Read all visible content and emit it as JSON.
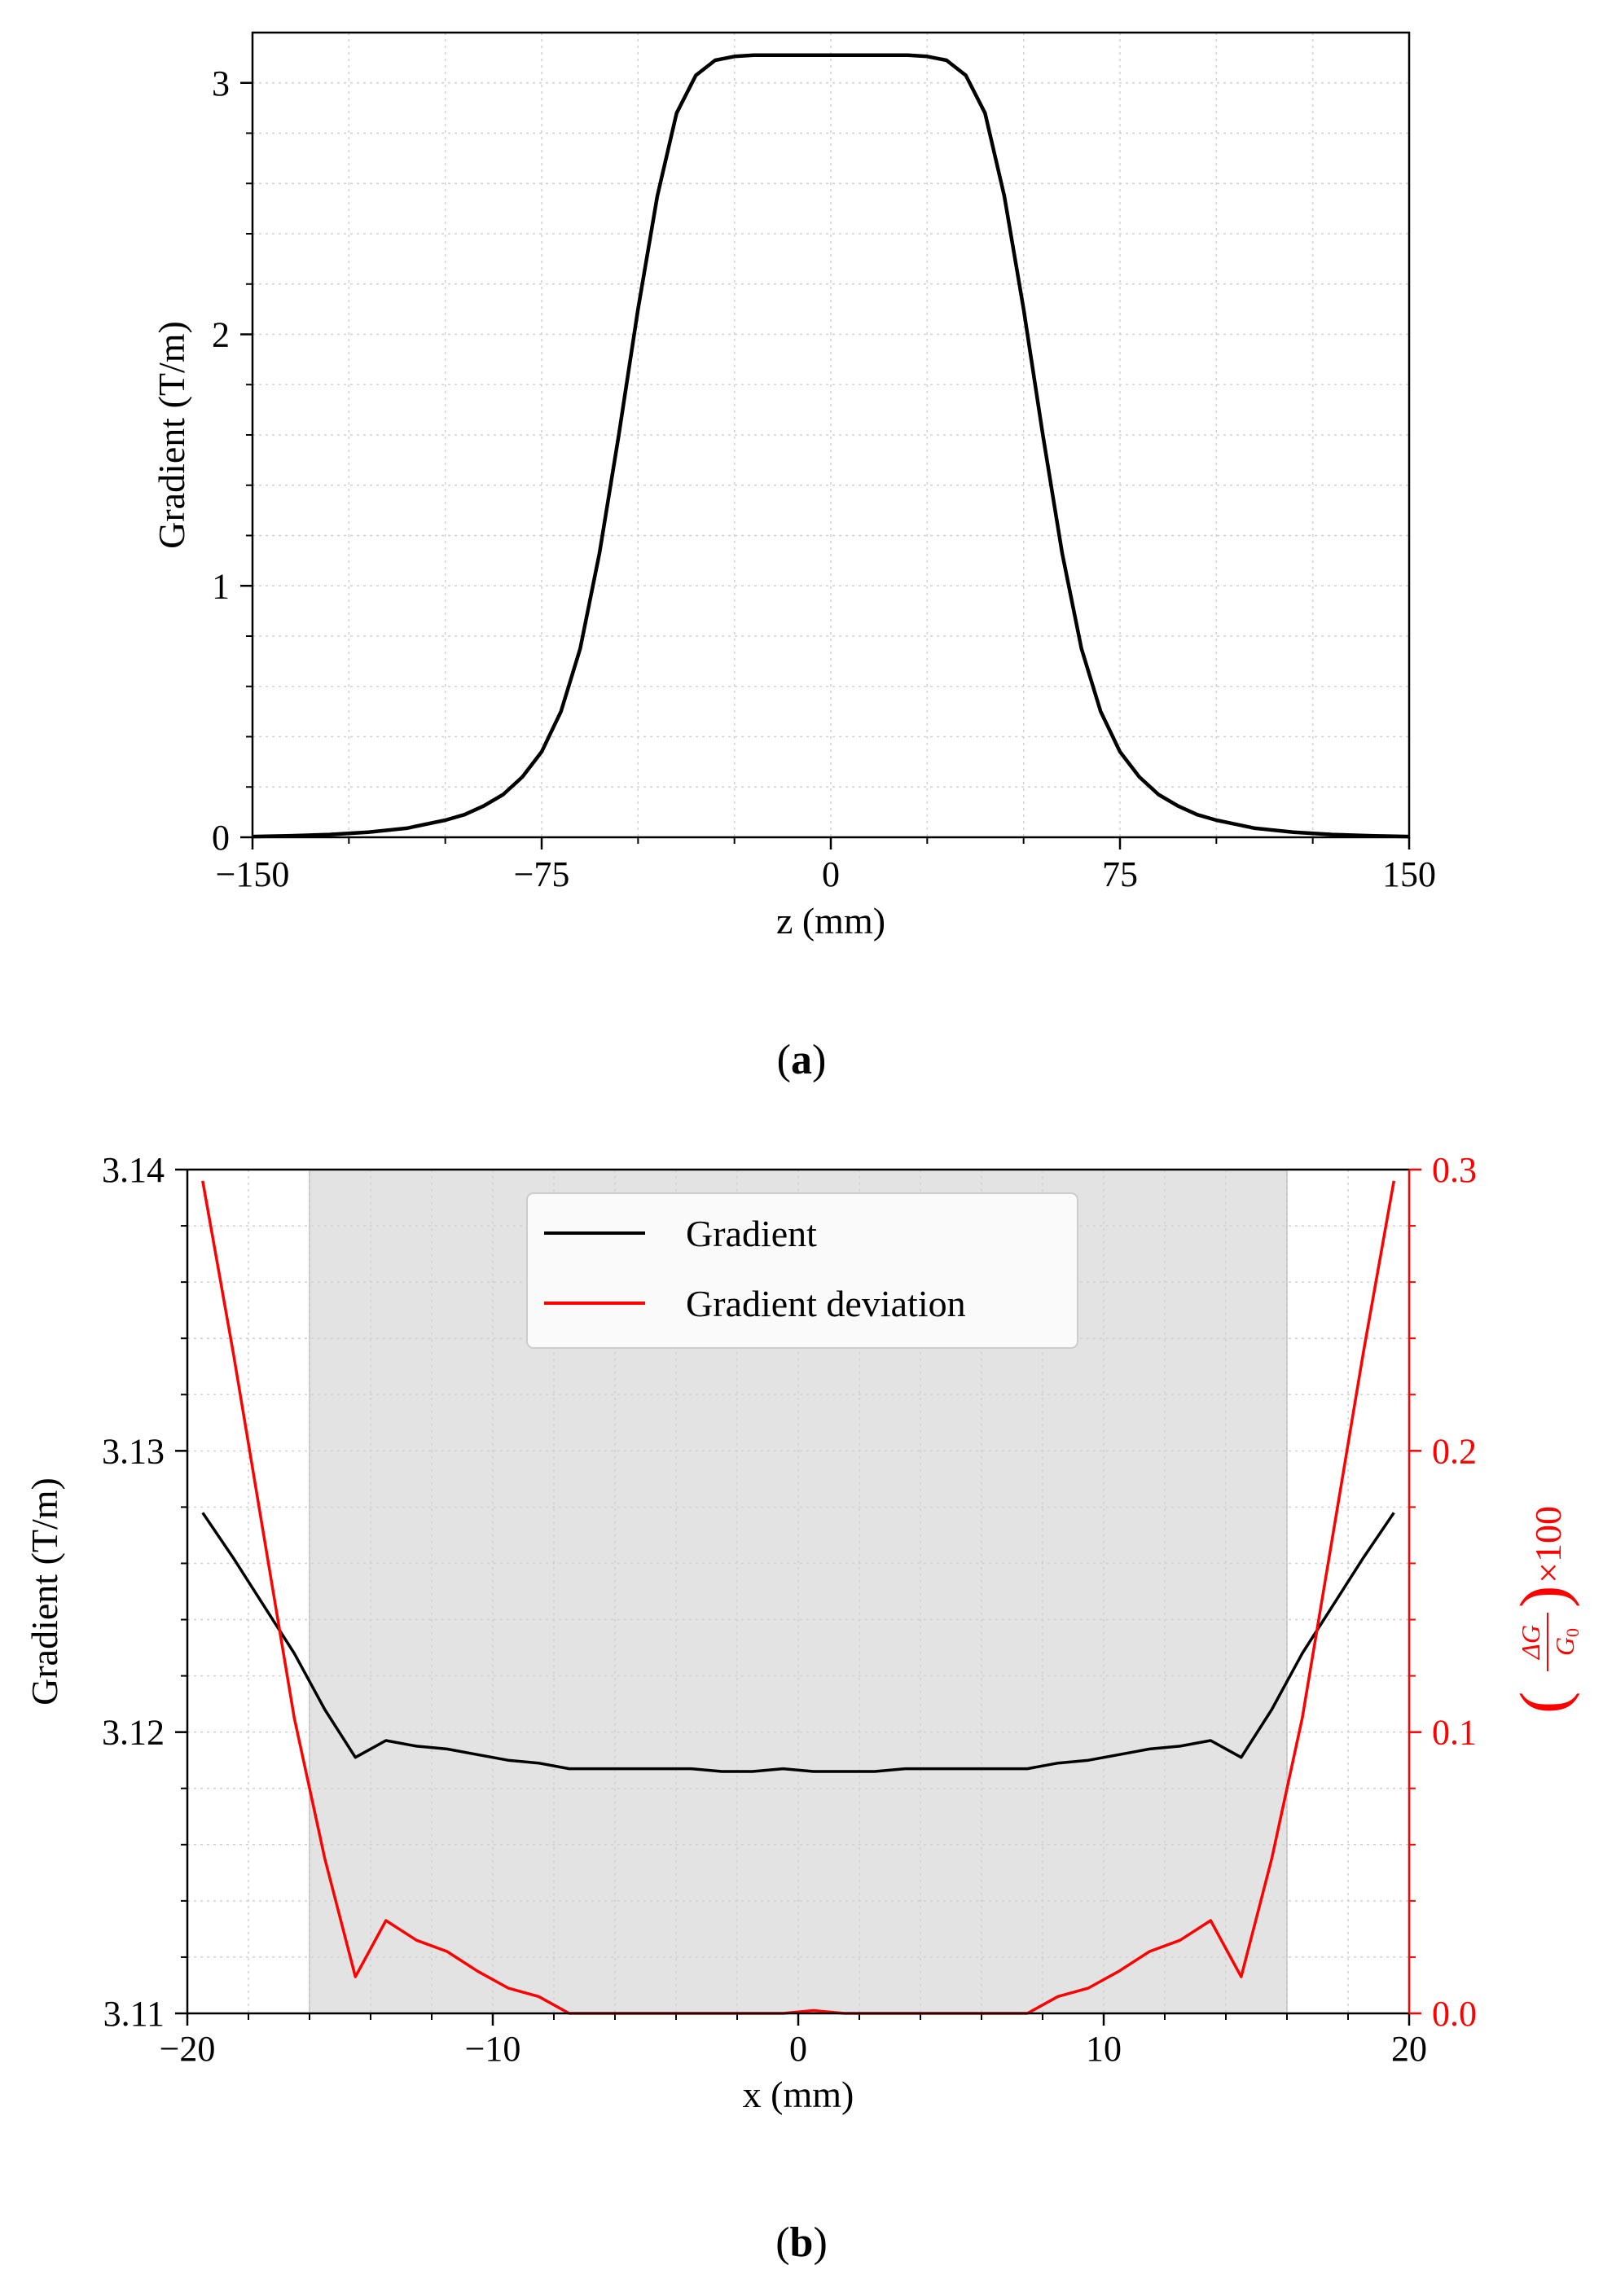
{
  "chart_data": [
    {
      "type": "line",
      "panel_label": "a",
      "title": "",
      "xlabel": "z (mm)",
      "ylabel": "Gradient (T/m)",
      "xlim": [
        -150,
        150
      ],
      "ylim": [
        0,
        3.2
      ],
      "xticks": [
        -150,
        -75,
        0,
        75,
        150
      ],
      "xtick_labels": [
        "−150",
        "−75",
        "0",
        "75",
        "150"
      ],
      "yticks": [
        0,
        1,
        2,
        3
      ],
      "ytick_labels": [
        "0",
        "1",
        "2",
        "3"
      ],
      "grid": true,
      "series": [
        {
          "name": "Gradient",
          "color": "#000000",
          "x": [
            -150,
            -140,
            -130,
            -120,
            -110,
            -100,
            -95,
            -90,
            -85,
            -80,
            -75,
            -70,
            -65,
            -60,
            -55,
            -50,
            -45,
            -40,
            -35,
            -30,
            -25,
            -20,
            -10,
            0,
            10,
            20,
            25,
            30,
            35,
            40,
            45,
            50,
            55,
            60,
            65,
            70,
            75,
            80,
            85,
            90,
            95,
            100,
            110,
            120,
            130,
            140,
            150
          ],
          "y": [
            0.003,
            0.006,
            0.011,
            0.02,
            0.036,
            0.068,
            0.09,
            0.125,
            0.17,
            0.24,
            0.34,
            0.5,
            0.75,
            1.13,
            1.6,
            2.1,
            2.55,
            2.88,
            3.03,
            3.09,
            3.105,
            3.11,
            3.11,
            3.11,
            3.11,
            3.11,
            3.105,
            3.09,
            3.03,
            2.88,
            2.55,
            2.1,
            1.6,
            1.13,
            0.75,
            0.5,
            0.34,
            0.24,
            0.17,
            0.125,
            0.09,
            0.068,
            0.036,
            0.02,
            0.011,
            0.006,
            0.003
          ]
        }
      ]
    },
    {
      "type": "line",
      "panel_label": "b",
      "title": "",
      "xlabel": "x (mm)",
      "ylabel": "Gradient (T/m)",
      "ylabel_right_prefix": "ΔG",
      "ylabel_right_denom": "G",
      "ylabel_right_sub": "0",
      "ylabel_right_suffix": "×100",
      "xlim": [
        -20,
        20
      ],
      "ylim": [
        3.11,
        3.14
      ],
      "ylim_right": [
        0.0,
        0.3
      ],
      "xticks": [
        -20,
        -10,
        0,
        10,
        20
      ],
      "xtick_labels": [
        "−20",
        "−10",
        "0",
        "10",
        "20"
      ],
      "yticks": [
        3.11,
        3.12,
        3.13,
        3.14
      ],
      "ytick_labels": [
        "3.11",
        "3.12",
        "3.13",
        "3.14"
      ],
      "yticks_right": [
        0.0,
        0.1,
        0.2,
        0.3
      ],
      "ytick_labels_right": [
        "0.0",
        "0.1",
        "0.2",
        "0.3"
      ],
      "shaded_region_x": [
        -16,
        16
      ],
      "shade_color": "#e3e3e3",
      "grid": true,
      "legend_placement": "top-center",
      "series": [
        {
          "name": "Gradient",
          "color": "#000000",
          "axis": "left",
          "x": [
            -19.5,
            -18.5,
            -17.5,
            -16.5,
            -15.5,
            -14.5,
            -13.5,
            -12.5,
            -11.5,
            -10.5,
            -9.5,
            -8.5,
            -7.5,
            -6.5,
            -5.5,
            -4.5,
            -3.5,
            -2.5,
            -1.5,
            -0.5,
            0.5,
            1.5,
            2.5,
            3.5,
            4.5,
            5.5,
            6.5,
            7.5,
            8.5,
            9.5,
            10.5,
            11.5,
            12.5,
            13.5,
            14.5,
            15.5,
            16.5,
            17.5,
            18.5,
            19.5
          ],
          "y": [
            3.1278,
            3.1262,
            3.1245,
            3.1228,
            3.1208,
            3.1191,
            3.1197,
            3.1195,
            3.1194,
            3.1192,
            3.119,
            3.1189,
            3.1187,
            3.1187,
            3.1187,
            3.1187,
            3.1187,
            3.1186,
            3.1186,
            3.1187,
            3.1186,
            3.1186,
            3.1186,
            3.1187,
            3.1187,
            3.1187,
            3.1187,
            3.1187,
            3.1189,
            3.119,
            3.1192,
            3.1194,
            3.1195,
            3.1197,
            3.1191,
            3.1208,
            3.1228,
            3.1245,
            3.1262,
            3.1278
          ]
        },
        {
          "name": "Gradient deviation",
          "color": "#ff0000",
          "axis": "right",
          "x": [
            -19.5,
            -18.5,
            -17.5,
            -16.5,
            -15.5,
            -14.5,
            -13.5,
            -12.5,
            -11.5,
            -10.5,
            -9.5,
            -8.5,
            -7.5,
            -6.5,
            -5.5,
            -4.5,
            -3.5,
            -2.5,
            -1.5,
            -0.5,
            0.5,
            1.5,
            2.5,
            3.5,
            4.5,
            5.5,
            6.5,
            7.5,
            8.5,
            9.5,
            10.5,
            11.5,
            12.5,
            13.5,
            14.5,
            15.5,
            16.5,
            17.5,
            18.5,
            19.5
          ],
          "y": [
            0.296,
            0.235,
            0.17,
            0.105,
            0.055,
            0.013,
            0.033,
            0.026,
            0.022,
            0.015,
            0.009,
            0.006,
            0.0,
            0.0,
            0.0,
            0.0,
            0.0,
            0.0,
            0.0,
            0.0,
            0.001,
            0.0,
            0.0,
            0.0,
            0.0,
            0.0,
            0.0,
            0.0,
            0.006,
            0.009,
            0.015,
            0.022,
            0.026,
            0.033,
            0.013,
            0.055,
            0.105,
            0.17,
            0.235,
            0.296
          ]
        }
      ]
    }
  ]
}
